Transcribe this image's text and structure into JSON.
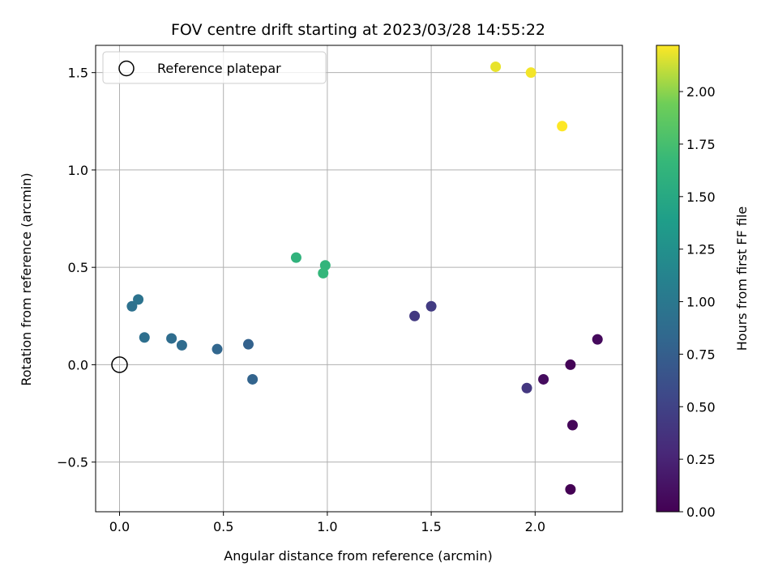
{
  "chart_data": {
    "type": "scatter",
    "title": "FOV centre drift starting at 2023/03/28 14:55:22",
    "xlabel": "Angular distance from reference (arcmin)",
    "ylabel": "Rotation from reference (arcmin)",
    "xlim": [
      -0.115,
      2.42
    ],
    "ylim": [
      -0.755,
      1.64
    ],
    "xticks": [
      0.0,
      0.5,
      1.0,
      1.5,
      2.0
    ],
    "xtick_labels": [
      "0.0",
      "0.5",
      "1.0",
      "1.5",
      "2.0"
    ],
    "yticks": [
      -0.5,
      0.0,
      0.5,
      1.0,
      1.5
    ],
    "ytick_labels": [
      "−0.5",
      "0.0",
      "0.5",
      "1.0",
      "1.5"
    ],
    "grid": true,
    "legend": {
      "placement": "top-left",
      "entries": [
        "Reference platepar"
      ]
    },
    "reference_point": {
      "x": 0.0,
      "y": 0.0
    },
    "points": [
      {
        "x": 2.17,
        "y": -0.64,
        "t": 0.0
      },
      {
        "x": 2.17,
        "y": 0.0,
        "t": 0.02
      },
      {
        "x": 2.18,
        "y": -0.31,
        "t": 0.04
      },
      {
        "x": 2.3,
        "y": 0.13,
        "t": 0.06
      },
      {
        "x": 2.04,
        "y": -0.075,
        "t": 0.08
      },
      {
        "x": 1.96,
        "y": -0.12,
        "t": 0.4
      },
      {
        "x": 1.42,
        "y": 0.25,
        "t": 0.42
      },
      {
        "x": 1.5,
        "y": 0.3,
        "t": 0.44
      },
      {
        "x": 0.62,
        "y": 0.105,
        "t": 0.78
      },
      {
        "x": 0.64,
        "y": -0.075,
        "t": 0.8
      },
      {
        "x": 0.47,
        "y": 0.08,
        "t": 0.82
      },
      {
        "x": 0.3,
        "y": 0.1,
        "t": 0.87
      },
      {
        "x": 0.25,
        "y": 0.135,
        "t": 0.89
      },
      {
        "x": 0.12,
        "y": 0.14,
        "t": 0.91
      },
      {
        "x": 0.06,
        "y": 0.3,
        "t": 0.93
      },
      {
        "x": 0.09,
        "y": 0.335,
        "t": 0.95
      },
      {
        "x": 0.85,
        "y": 0.55,
        "t": 1.61
      },
      {
        "x": 0.99,
        "y": 0.51,
        "t": 1.63
      },
      {
        "x": 0.98,
        "y": 0.47,
        "t": 1.65
      },
      {
        "x": 1.81,
        "y": 1.53,
        "t": 2.18
      },
      {
        "x": 1.98,
        "y": 1.5,
        "t": 2.2
      },
      {
        "x": 2.13,
        "y": 1.225,
        "t": 2.22
      }
    ],
    "colorbar": {
      "label": "Hours from first FF file",
      "colormap": "viridis",
      "range": [
        0.0,
        2.22
      ],
      "ticks": [
        0.0,
        0.25,
        0.5,
        0.75,
        1.0,
        1.25,
        1.5,
        1.75,
        2.0
      ],
      "tick_labels": [
        "0.00",
        "0.25",
        "0.50",
        "0.75",
        "1.00",
        "1.25",
        "1.50",
        "1.75",
        "2.00"
      ]
    }
  }
}
